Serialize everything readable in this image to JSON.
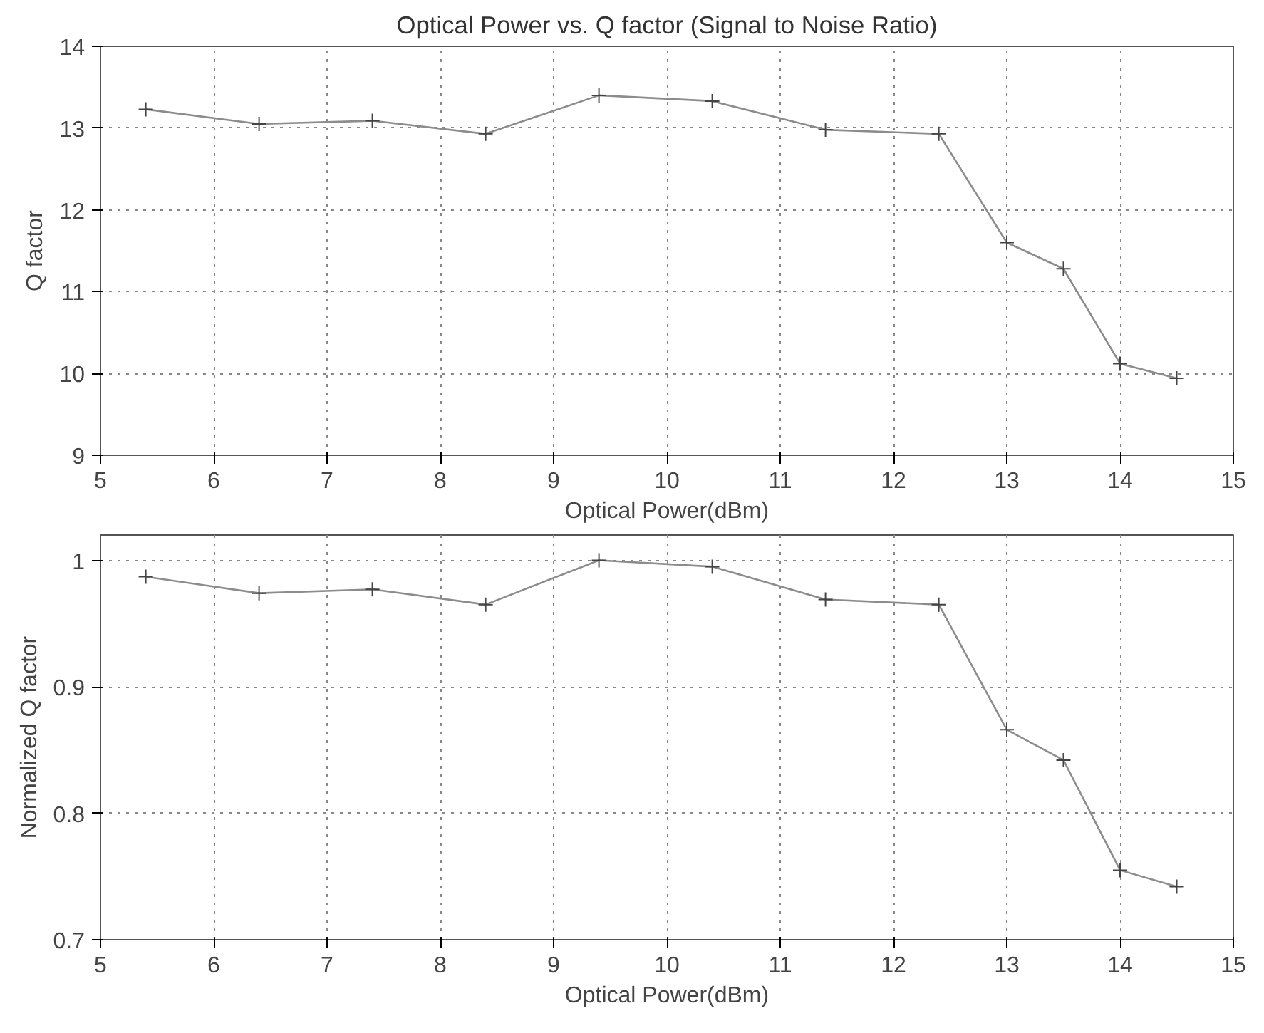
{
  "chart_data": [
    {
      "type": "line",
      "title": "Optical Power vs. Q factor (Signal to Noise Ratio)",
      "xlabel": "Optical Power(dBm)",
      "ylabel": "Q factor",
      "x": [
        5.4,
        6.4,
        7.4,
        8.4,
        9.4,
        10.4,
        11.4,
        12.4,
        13,
        13.5,
        14,
        14.5
      ],
      "series": [
        {
          "color": "#8c8c8c",
          "values": [
            13.23,
            13.05,
            13.09,
            12.93,
            13.4,
            13.33,
            12.98,
            12.93,
            11.6,
            11.28,
            10.12,
            9.94
          ]
        }
      ],
      "xlim": [
        5,
        15
      ],
      "xticks": [
        5,
        6,
        7,
        8,
        9,
        10,
        11,
        12,
        13,
        14,
        15
      ],
      "ylim": [
        9,
        14
      ],
      "yticks": [
        9,
        10,
        11,
        12,
        13,
        14
      ],
      "grid": true,
      "marker": "cross",
      "line_style": "solid"
    },
    {
      "type": "line",
      "xlabel": "Optical Power(dBm)",
      "ylabel": "Normalized Q factor",
      "x": [
        5.4,
        6.4,
        7.4,
        8.4,
        9.4,
        10.4,
        11.4,
        12.4,
        13,
        13.5,
        14,
        14.5
      ],
      "series": [
        {
          "color": "#8c8c8c",
          "values": [
            0.987,
            0.974,
            0.977,
            0.965,
            1.0,
            0.995,
            0.969,
            0.965,
            0.866,
            0.842,
            0.755,
            0.742
          ]
        }
      ],
      "xlim": [
        5,
        15
      ],
      "xticks": [
        5,
        6,
        7,
        8,
        9,
        10,
        11,
        12,
        13,
        14,
        15
      ],
      "ylim": [
        0.7,
        1.02
      ],
      "yticks": [
        {
          "value": 0.7,
          "label": "0.7"
        },
        {
          "value": 0.8,
          "label": "0.8"
        },
        {
          "value": 0.9,
          "label": "0.9"
        },
        {
          "value": 1,
          "label": "1"
        }
      ],
      "grid": true,
      "marker": "cross",
      "line_style": "solid"
    }
  ]
}
